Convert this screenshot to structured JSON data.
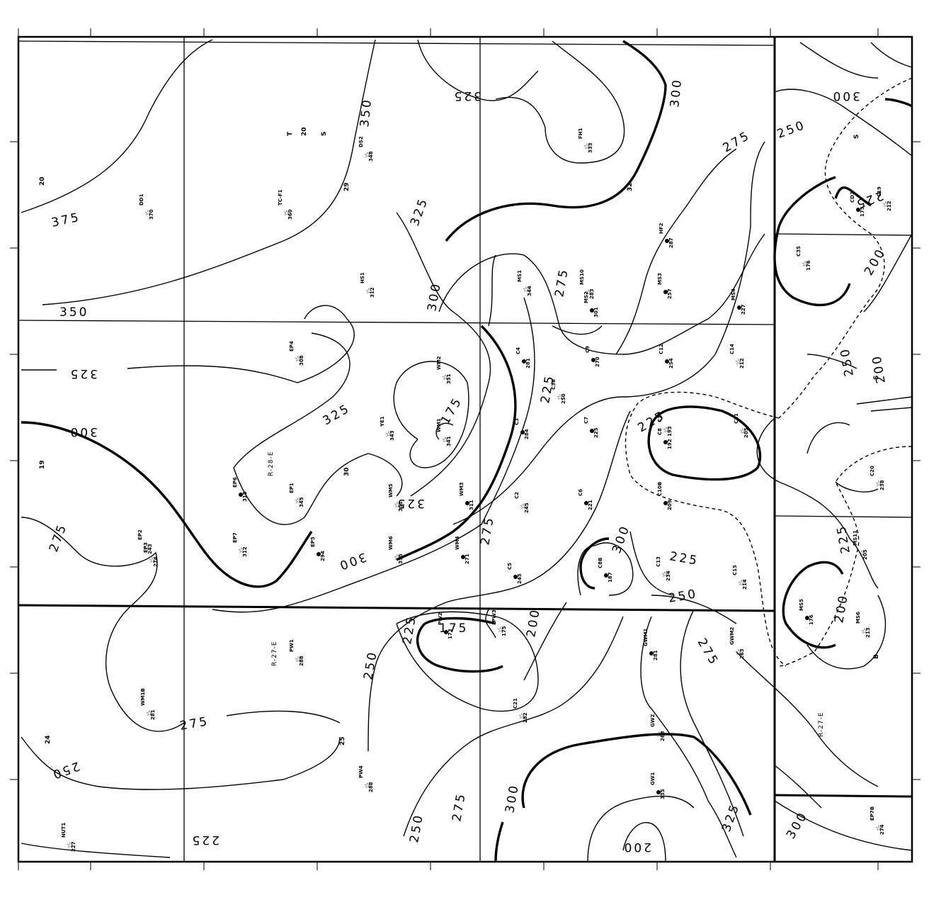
{
  "contour_labels": [
    "375",
    "350",
    "325",
    "300",
    "275",
    "250",
    "225",
    "200",
    "175"
  ],
  "section_numbers": [
    "20",
    "29",
    "32",
    "19",
    "30",
    "24",
    "25",
    "T",
    "S",
    "B"
  ],
  "range_labels": [
    "R-28-E",
    "R-27-E"
  ],
  "wells": [
    {
      "id": "DD1",
      "value": "370"
    },
    {
      "id": "TC-F1",
      "value": "360"
    },
    {
      "id": "DS2",
      "value": "348"
    },
    {
      "id": "FH1",
      "value": "333"
    },
    {
      "id": "HS1",
      "value": "312"
    },
    {
      "id": "MS1",
      "value": "344"
    },
    {
      "id": "MS10",
      "value": "283"
    },
    {
      "id": "MS2",
      "value": "301"
    },
    {
      "id": "HF2",
      "value": "287"
    },
    {
      "id": "MS3",
      "value": "257"
    },
    {
      "id": "MS4",
      "value": "227"
    },
    {
      "id": "CD2",
      "value": "175"
    },
    {
      "id": "C19",
      "value": "212"
    },
    {
      "id": "C35",
      "value": "176"
    },
    {
      "id": "EP4",
      "value": "308"
    },
    {
      "id": "WM2",
      "value": "351"
    },
    {
      "id": "C4",
      "value": "281"
    },
    {
      "id": "C9",
      "value": "270"
    },
    {
      "id": "C12",
      "value": "254"
    },
    {
      "id": "C14",
      "value": "212"
    },
    {
      "id": "C36",
      "value": "250"
    },
    {
      "id": "YE1",
      "value": "343"
    },
    {
      "id": "WM1",
      "value": "341"
    },
    {
      "id": "C3",
      "value": "284"
    },
    {
      "id": "C7",
      "value": "225"
    },
    {
      "id": "C10",
      "value": "193"
    },
    {
      "id": "C8",
      "value": "192"
    },
    {
      "id": "C11",
      "value": "205"
    },
    {
      "id": "EP6",
      "value": "315"
    },
    {
      "id": "EP1",
      "value": "345"
    },
    {
      "id": "WM5",
      "value": "331"
    },
    {
      "id": "WM3",
      "value": "311"
    },
    {
      "id": "C2",
      "value": "245"
    },
    {
      "id": "C6",
      "value": "221"
    },
    {
      "id": "C10B",
      "value": "209"
    },
    {
      "id": "C20",
      "value": "238"
    },
    {
      "id": "EP2",
      "value": "243"
    },
    {
      "id": "EP3",
      "value": "274"
    },
    {
      "id": "EP7",
      "value": "312"
    },
    {
      "id": "EP5",
      "value": "294"
    },
    {
      "id": "WM6",
      "value": "355"
    },
    {
      "id": "WM4",
      "value": "271"
    },
    {
      "id": "C5",
      "value": "245"
    },
    {
      "id": "C8B",
      "value": "187"
    },
    {
      "id": "C13",
      "value": "234"
    },
    {
      "id": "C15",
      "value": "214"
    },
    {
      "id": "MS11",
      "value": "205"
    },
    {
      "id": "MS5",
      "value": "176"
    },
    {
      "id": "MS6",
      "value": "213"
    },
    {
      "id": "PW2",
      "value": "173"
    },
    {
      "id": "PW3",
      "value": "175"
    },
    {
      "id": "PW1",
      "value": "288"
    },
    {
      "id": "GWM1",
      "value": "281"
    },
    {
      "id": "GWM2",
      "value": "263"
    },
    {
      "id": "WM1B",
      "value": "281"
    },
    {
      "id": "C21",
      "value": "282"
    },
    {
      "id": "GW2",
      "value": "263"
    },
    {
      "id": "PW4",
      "value": "288"
    },
    {
      "id": "GW1",
      "value": "335"
    },
    {
      "id": "NUT1",
      "value": "227"
    },
    {
      "id": "EP7B",
      "value": "274"
    }
  ]
}
